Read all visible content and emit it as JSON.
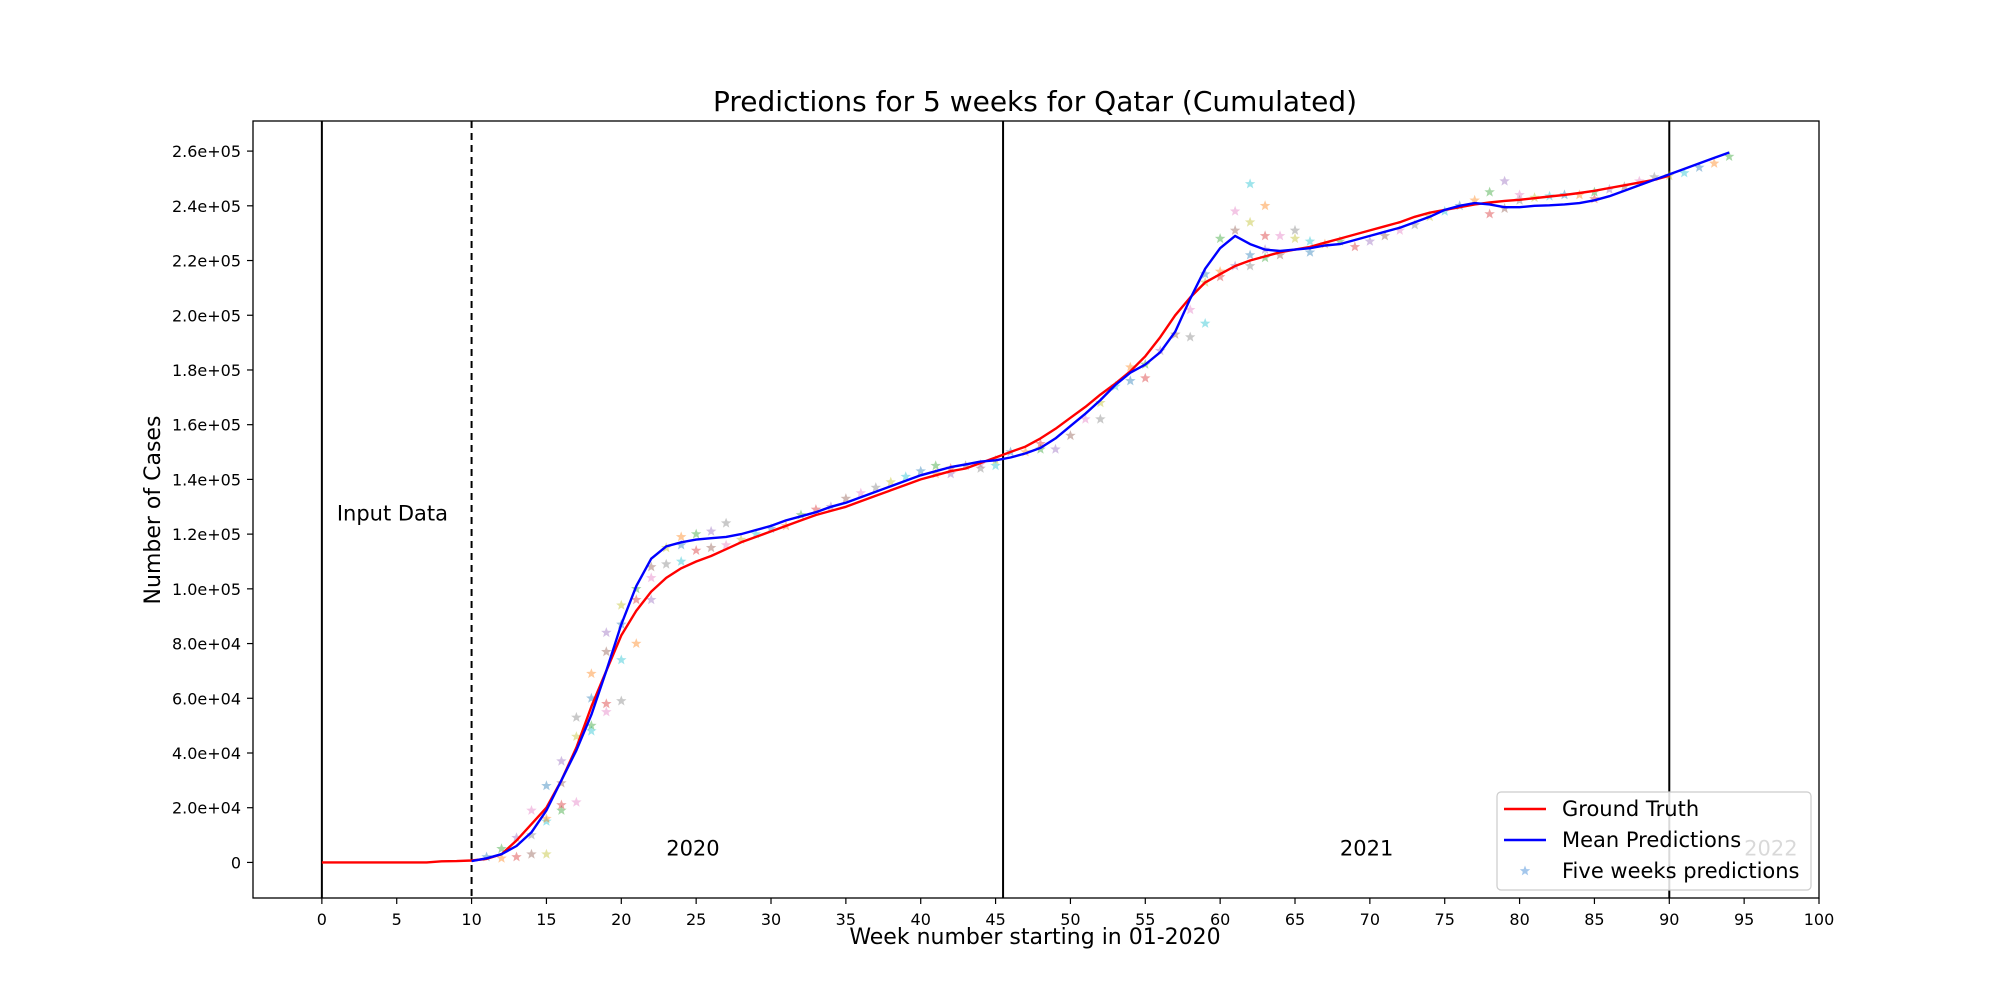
{
  "chart_data": {
    "type": "line",
    "title": "Predictions for 5 weeks for Qatar (Cumulated)",
    "xlabel": "Week number starting in 01-2020",
    "ylabel": "Number of Cases",
    "xlim": [
      -4.6,
      100
    ],
    "ylim": [
      -13000,
      271000
    ],
    "xticks": [
      0,
      5,
      10,
      15,
      20,
      25,
      30,
      35,
      40,
      45,
      50,
      55,
      60,
      65,
      70,
      75,
      80,
      85,
      90,
      95,
      100
    ],
    "yticks": [
      {
        "value": 0,
        "label": "0"
      },
      {
        "value": 20000,
        "label": "2.0e+04"
      },
      {
        "value": 40000,
        "label": "4.0e+04"
      },
      {
        "value": 60000,
        "label": "6.0e+04"
      },
      {
        "value": 80000,
        "label": "8.0e+04"
      },
      {
        "value": 100000,
        "label": "1.0e+05"
      },
      {
        "value": 120000,
        "label": "1.2e+05"
      },
      {
        "value": 140000,
        "label": "1.4e+05"
      },
      {
        "value": 160000,
        "label": "1.6e+05"
      },
      {
        "value": 180000,
        "label": "1.8e+05"
      },
      {
        "value": 200000,
        "label": "2.0e+05"
      },
      {
        "value": 220000,
        "label": "2.2e+05"
      },
      {
        "value": 240000,
        "label": "2.4e+05"
      },
      {
        "value": 260000,
        "label": "2.6e+05"
      }
    ],
    "grid": false,
    "legend_position": "lower-right",
    "series": [
      {
        "name": "Ground Truth",
        "color": "#ff0000",
        "style": "line",
        "x": [
          0,
          1,
          2,
          3,
          4,
          5,
          6,
          7,
          8,
          9,
          10,
          11,
          12,
          13,
          14,
          15,
          16,
          17,
          18,
          19,
          20,
          21,
          22,
          23,
          24,
          25,
          26,
          27,
          28,
          29,
          30,
          31,
          32,
          33,
          34,
          35,
          36,
          37,
          38,
          39,
          40,
          41,
          42,
          43,
          44,
          45,
          46,
          47,
          48,
          49,
          50,
          51,
          52,
          53,
          54,
          55,
          56,
          57,
          58,
          59,
          60,
          61,
          62,
          63,
          64,
          65,
          66,
          67,
          68,
          69,
          70,
          71,
          72,
          73,
          74,
          75,
          76,
          77,
          78,
          79,
          80,
          81,
          82,
          83,
          84,
          85,
          86,
          87,
          88,
          89,
          90
        ],
        "y": [
          0,
          0,
          0,
          0,
          0,
          0,
          0,
          10,
          400,
          500,
          700,
          1300,
          3000,
          8000,
          14000,
          20000,
          30000,
          42000,
          57000,
          70000,
          83000,
          92000,
          99000,
          104000,
          107500,
          110000,
          112000,
          114500,
          117000,
          119000,
          121000,
          123000,
          125000,
          127000,
          128500,
          130000,
          132000,
          134000,
          136000,
          138000,
          140000,
          141500,
          143000,
          144000,
          146000,
          148000,
          150000,
          152000,
          155000,
          158500,
          162500,
          166500,
          171000,
          175000,
          179500,
          185000,
          192000,
          200000,
          206500,
          212000,
          215000,
          218000,
          220000,
          221500,
          223000,
          224000,
          225000,
          226500,
          228000,
          229500,
          231000,
          232500,
          234000,
          236000,
          237500,
          238500,
          239500,
          240500,
          241200,
          241800,
          242200,
          242800,
          243400,
          244000,
          244700,
          245500,
          246500,
          247500,
          248500,
          249500,
          251000
        ]
      },
      {
        "name": "Mean Predictions",
        "color": "#0000ff",
        "style": "line",
        "x": [
          10,
          11,
          12,
          13,
          14,
          15,
          16,
          17,
          18,
          19,
          20,
          21,
          22,
          23,
          24,
          25,
          26,
          27,
          28,
          29,
          30,
          31,
          32,
          33,
          34,
          35,
          36,
          37,
          38,
          39,
          40,
          41,
          42,
          43,
          44,
          45,
          46,
          47,
          48,
          49,
          50,
          51,
          52,
          53,
          54,
          55,
          56,
          57,
          58,
          59,
          60,
          61,
          62,
          63,
          64,
          65,
          66,
          67,
          68,
          69,
          70,
          71,
          72,
          73,
          74,
          75,
          76,
          77,
          78,
          79,
          80,
          81,
          82,
          83,
          84,
          85,
          86,
          87,
          88,
          89,
          90,
          91,
          92,
          93,
          94
        ],
        "y": [
          500,
          1500,
          3000,
          6000,
          11000,
          19000,
          30000,
          41000,
          54000,
          70000,
          87000,
          101000,
          111000,
          115500,
          117000,
          118000,
          118500,
          119000,
          120000,
          121500,
          123000,
          125000,
          126500,
          128000,
          130000,
          131500,
          133500,
          135500,
          137500,
          139500,
          141500,
          143000,
          144500,
          145500,
          146500,
          147000,
          148000,
          149500,
          151500,
          155000,
          159500,
          164000,
          169000,
          174500,
          179000,
          182000,
          186500,
          194000,
          206000,
          217000,
          224500,
          229000,
          226000,
          224000,
          223500,
          224000,
          224500,
          225500,
          226000,
          227500,
          229000,
          230500,
          232000,
          234000,
          236000,
          238500,
          240000,
          241000,
          240500,
          239500,
          239500,
          240000,
          240200,
          240500,
          241000,
          242000,
          243500,
          245500,
          247500,
          249500,
          251500,
          253500,
          255500,
          257500,
          259500
        ]
      },
      {
        "name": "Five weeks predictions",
        "color": "#4a90d9",
        "style": "markers",
        "marker_colors": [
          "#1f77b4",
          "#ff7f0e",
          "#2ca02c",
          "#d62728",
          "#9467bd",
          "#8c564b",
          "#e377c2",
          "#7f7f7f",
          "#bcbd22",
          "#17becf"
        ],
        "x": [
          11,
          12,
          12,
          13,
          13,
          14,
          14,
          14,
          15,
          15,
          15,
          15,
          16,
          16,
          16,
          16,
          17,
          17,
          17,
          18,
          18,
          18,
          18,
          19,
          19,
          19,
          19,
          20,
          20,
          20,
          20,
          21,
          21,
          21,
          22,
          22,
          22,
          23,
          23,
          24,
          24,
          24,
          25,
          25,
          26,
          26,
          27,
          27,
          28,
          29,
          30,
          31,
          32,
          33,
          34,
          35,
          36,
          37,
          38,
          39,
          40,
          41,
          41,
          42,
          42,
          43,
          44,
          44,
          45,
          45,
          46,
          47,
          48,
          48,
          49,
          50,
          51,
          52,
          52,
          53,
          54,
          54,
          55,
          55,
          56,
          57,
          58,
          58,
          59,
          59,
          59,
          60,
          60,
          60,
          61,
          61,
          61,
          62,
          62,
          62,
          62,
          63,
          63,
          63,
          63,
          64,
          64,
          65,
          65,
          66,
          66,
          67,
          68,
          69,
          70,
          71,
          72,
          73,
          74,
          75,
          76,
          77,
          78,
          78,
          79,
          79,
          80,
          80,
          81,
          82,
          83,
          84,
          85,
          85,
          86,
          87,
          88,
          89,
          90,
          91,
          92,
          93,
          94
        ],
        "y": [
          2000,
          1500,
          5000,
          2000,
          9000,
          3000,
          19000,
          10000,
          3000,
          15000,
          28000,
          16000,
          19000,
          21000,
          37000,
          29000,
          22000,
          53000,
          46000,
          48000,
          60000,
          69000,
          50000,
          58000,
          84000,
          77000,
          55000,
          59000,
          94000,
          74000,
          87000,
          80000,
          100000,
          96000,
          96000,
          108000,
          104000,
          109000,
          115000,
          110000,
          116000,
          119000,
          120000,
          114000,
          121000,
          115000,
          116000,
          124000,
          118000,
          120000,
          122000,
          123000,
          127000,
          129000,
          130000,
          133000,
          135000,
          137000,
          139000,
          141000,
          143000,
          142000,
          145000,
          144000,
          142000,
          145000,
          145500,
          144000,
          147000,
          145000,
          150000,
          150000,
          151000,
          153000,
          151000,
          156000,
          162000,
          162000,
          168000,
          174000,
          176000,
          181000,
          182000,
          177000,
          187000,
          193000,
          202000,
          192000,
          212000,
          197000,
          215000,
          216000,
          228000,
          214000,
          218000,
          231000,
          238000,
          218000,
          234000,
          248000,
          222000,
          240000,
          221000,
          229000,
          224000,
          222000,
          229000,
          231000,
          228000,
          227000,
          223000,
          226000,
          227000,
          225000,
          227000,
          229000,
          231000,
          233000,
          236000,
          238000,
          240000,
          242000,
          245000,
          237000,
          249000,
          239000,
          244000,
          242000,
          243000,
          243500,
          244000,
          244000,
          245000,
          242500,
          246000,
          247000,
          249000,
          250500,
          251000,
          252000,
          254000,
          255500,
          258000
        ]
      }
    ],
    "vlines": [
      {
        "x": 0,
        "style": "solid"
      },
      {
        "x": 10,
        "style": "dashed"
      },
      {
        "x": 45.5,
        "style": "solid"
      },
      {
        "x": 90,
        "style": "solid"
      }
    ],
    "annotations": [
      {
        "text": "Input Data",
        "x": 1,
        "y": 125000
      },
      {
        "text": "2020",
        "x": 23,
        "y": 2500
      },
      {
        "text": "2021",
        "x": 68,
        "y": 2500
      },
      {
        "text": "2022",
        "x": 95,
        "y": 2500,
        "faded": true
      }
    ]
  }
}
